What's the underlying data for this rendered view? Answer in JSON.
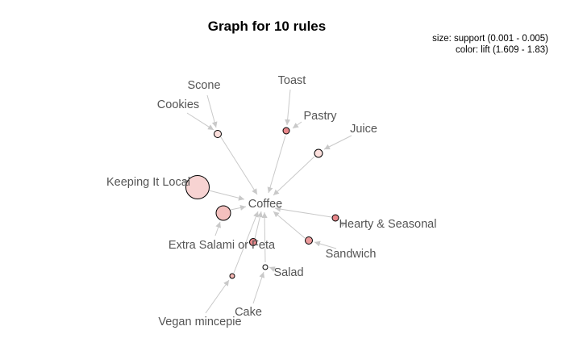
{
  "title": "Graph for 10 rules",
  "legend": {
    "size": "size: support (0.001 - 0.005)",
    "color": "color: lift (1.609 - 1.83)"
  },
  "items": {
    "coffee": "Coffee",
    "scone": "Scone",
    "cookies": "Cookies",
    "toast": "Toast",
    "pastry": "Pastry",
    "juice": "Juice",
    "keeping_it_local": "Keeping It Local",
    "extra_salami_or_feta": "Extra Salami or Feta",
    "hearty_seasonal": "Hearty & Seasonal",
    "sandwich": "Sandwich",
    "salad": "Salad",
    "cake": "Cake",
    "vegan_mincepie": "Vegan mincepie"
  },
  "colors": {
    "rule_low": "#fde0dd",
    "rule_mid": "#f4b6b3",
    "rule_high": "#e8878a",
    "edge": "#c9c9c9",
    "label": "#555555"
  }
}
